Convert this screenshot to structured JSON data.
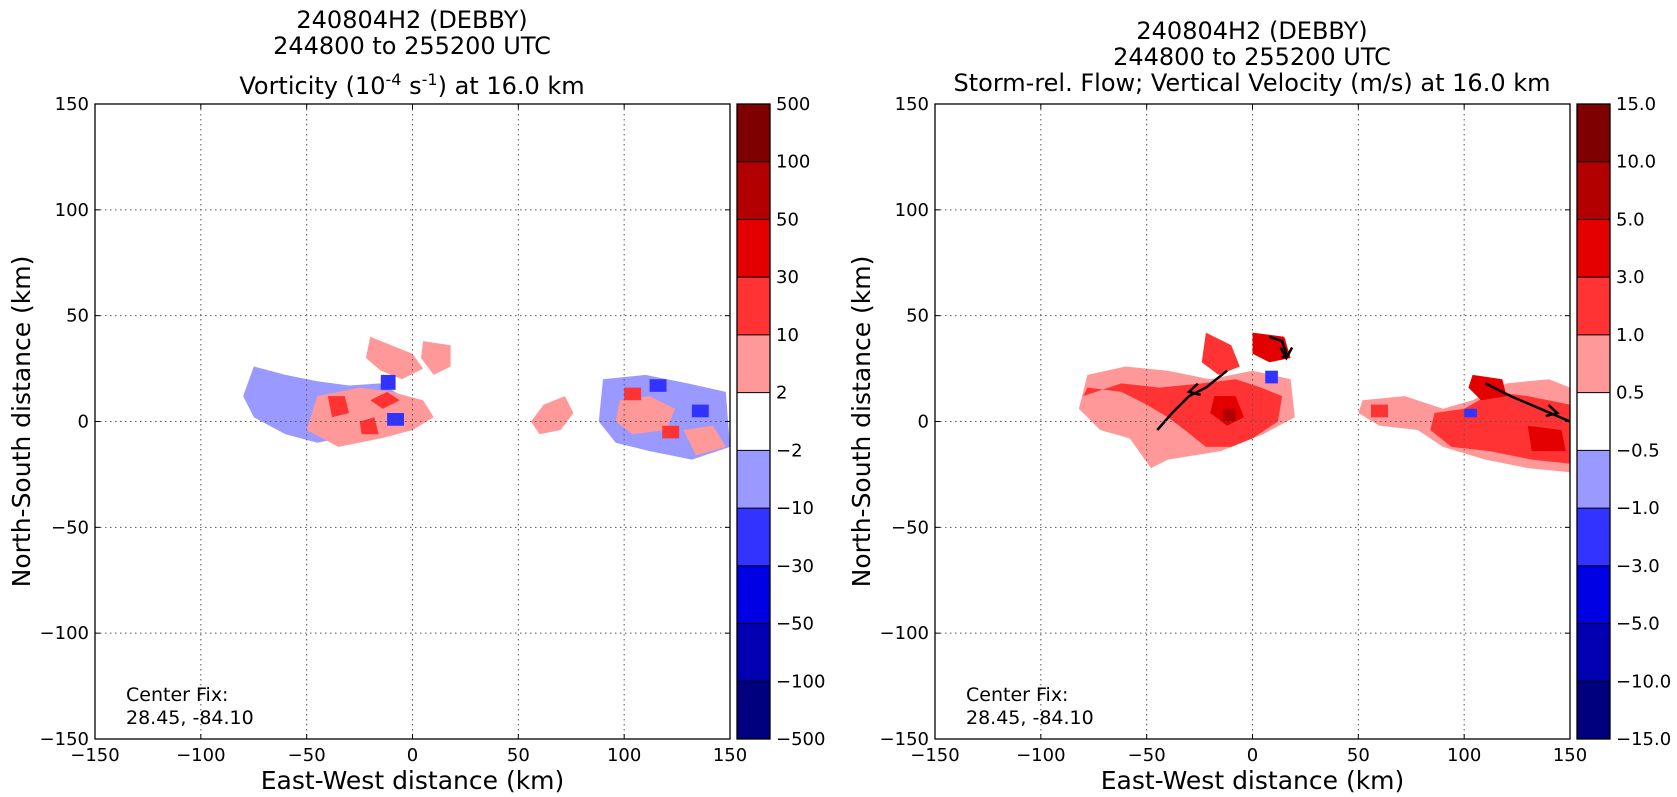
{
  "chart_data": [
    {
      "type": "heatmap",
      "title_lines": [
        "240804H2 (DEBBY)",
        "244800 to 255200 UTC"
      ],
      "title_field": {
        "pre": "Vorticity (10",
        "exp1": "-4",
        "mid": " s",
        "exp2": "-1",
        "post": ") at 16.0 km"
      },
      "xlabel": "East-West distance (km)",
      "ylabel": "North-South distance (km)",
      "xlim": [
        -150,
        150
      ],
      "ylim": [
        -150,
        150
      ],
      "xticks": [
        -150,
        -100,
        -50,
        0,
        50,
        100,
        150
      ],
      "yticks": [
        -150,
        -100,
        -50,
        0,
        50,
        100,
        150
      ],
      "xtick_labels": [
        "−150",
        "−100",
        "−50",
        "0",
        "50",
        "100",
        "150"
      ],
      "ytick_labels": [
        "−150",
        "−100",
        "−50",
        "0",
        "50",
        "100",
        "150"
      ],
      "grid": true,
      "annotation": [
        "Center Fix:",
        "28.45, -84.10"
      ],
      "colorbar": {
        "labels": [
          "500",
          "100",
          "50",
          "30",
          "10",
          "2",
          "−2",
          "−10",
          "−30",
          "−50",
          "−100",
          "−500"
        ],
        "colors": [
          "#7f0000",
          "#b20000",
          "#e50000",
          "#ff3333",
          "#ff9999",
          "#ffffff",
          "#9999ff",
          "#3333ff",
          "#0000e5",
          "#0000b2",
          "#00007f"
        ]
      },
      "regions": [
        {
          "level": -2,
          "points": [
            [
              -75,
              26
            ],
            [
              -60,
              22
            ],
            [
              -45,
              19
            ],
            [
              -30,
              17
            ],
            [
              -15,
              18
            ],
            [
              -5,
              12
            ],
            [
              -10,
              0
            ],
            [
              -25,
              -6
            ],
            [
              -45,
              -10
            ],
            [
              -60,
              -6
            ],
            [
              -75,
              2
            ],
            [
              -80,
              12
            ]
          ]
        },
        {
          "level": 2,
          "points": [
            [
              -45,
              12
            ],
            [
              -25,
              16
            ],
            [
              -10,
              14
            ],
            [
              5,
              10
            ],
            [
              10,
              2
            ],
            [
              0,
              -4
            ],
            [
              -15,
              -8
            ],
            [
              -35,
              -12
            ],
            [
              -50,
              -4
            ]
          ]
        },
        {
          "level": 2,
          "points": [
            [
              -20,
              40
            ],
            [
              -10,
              36
            ],
            [
              0,
              32
            ],
            [
              5,
              25
            ],
            [
              -5,
              20
            ],
            [
              -15,
              24
            ],
            [
              -22,
              30
            ]
          ]
        },
        {
          "level": 2,
          "points": [
            [
              5,
              38
            ],
            [
              18,
              36
            ],
            [
              18,
              26
            ],
            [
              10,
              22
            ],
            [
              4,
              30
            ]
          ]
        },
        {
          "level": 10,
          "points": [
            [
              -40,
              12
            ],
            [
              -32,
              12
            ],
            [
              -30,
              4
            ],
            [
              -38,
              2
            ]
          ]
        },
        {
          "level": 10,
          "points": [
            [
              -20,
              10
            ],
            [
              -12,
              14
            ],
            [
              -6,
              10
            ],
            [
              -14,
              6
            ]
          ]
        },
        {
          "level": 10,
          "points": [
            [
              -25,
              0
            ],
            [
              -18,
              2
            ],
            [
              -16,
              -6
            ],
            [
              -24,
              -6
            ]
          ]
        },
        {
          "level": -10,
          "points": [
            [
              -15,
              22
            ],
            [
              -8,
              22
            ],
            [
              -8,
              15
            ],
            [
              -15,
              15
            ]
          ]
        },
        {
          "level": -10,
          "points": [
            [
              -12,
              4
            ],
            [
              -4,
              4
            ],
            [
              -4,
              -2
            ],
            [
              -12,
              -2
            ]
          ]
        },
        {
          "level": 2,
          "points": [
            [
              62,
              8
            ],
            [
              72,
              12
            ],
            [
              76,
              4
            ],
            [
              70,
              -4
            ],
            [
              60,
              -6
            ],
            [
              56,
              0
            ]
          ]
        },
        {
          "level": -2,
          "points": [
            [
              90,
              20
            ],
            [
              110,
              22
            ],
            [
              130,
              18
            ],
            [
              148,
              14
            ],
            [
              150,
              -12
            ],
            [
              132,
              -18
            ],
            [
              112,
              -14
            ],
            [
              96,
              -10
            ],
            [
              88,
              0
            ]
          ]
        },
        {
          "level": 2,
          "points": [
            [
              98,
              10
            ],
            [
              112,
              12
            ],
            [
              124,
              6
            ],
            [
              120,
              -4
            ],
            [
              104,
              -6
            ],
            [
              96,
              0
            ]
          ]
        },
        {
          "level": 2,
          "points": [
            [
              128,
              -4
            ],
            [
              142,
              -2
            ],
            [
              148,
              -12
            ],
            [
              134,
              -16
            ]
          ]
        },
        {
          "level": -10,
          "points": [
            [
              112,
              20
            ],
            [
              120,
              20
            ],
            [
              120,
              14
            ],
            [
              112,
              14
            ]
          ]
        },
        {
          "level": -10,
          "points": [
            [
              132,
              8
            ],
            [
              140,
              8
            ],
            [
              140,
              2
            ],
            [
              132,
              2
            ]
          ]
        },
        {
          "level": 10,
          "points": [
            [
              100,
              16
            ],
            [
              108,
              16
            ],
            [
              108,
              10
            ],
            [
              100,
              10
            ]
          ]
        },
        {
          "level": 10,
          "points": [
            [
              118,
              -2
            ],
            [
              126,
              -2
            ],
            [
              126,
              -8
            ],
            [
              118,
              -8
            ]
          ]
        }
      ]
    },
    {
      "type": "heatmap",
      "title_lines": [
        "240804H2 (DEBBY)",
        "244800 to 255200 UTC",
        "Storm-rel. Flow; Vertical Velocity (m/s) at 16.0 km"
      ],
      "xlabel": "East-West distance (km)",
      "ylabel": "North-South distance (km)",
      "xlim": [
        -150,
        150
      ],
      "ylim": [
        -150,
        150
      ],
      "xticks": [
        -150,
        -100,
        -50,
        0,
        50,
        100,
        150
      ],
      "yticks": [
        -150,
        -100,
        -50,
        0,
        50,
        100,
        150
      ],
      "xtick_labels": [
        "−150",
        "−100",
        "−50",
        "0",
        "50",
        "100",
        "150"
      ],
      "ytick_labels": [
        "−150",
        "−100",
        "−50",
        "0",
        "50",
        "100",
        "150"
      ],
      "grid": true,
      "annotation": [
        "Center Fix:",
        "28.45, -84.10"
      ],
      "colorbar": {
        "labels": [
          "15.0",
          "10.0",
          "5.0",
          "3.0",
          "1.0",
          "0.5",
          "−0.5",
          "−1.0",
          "−3.0",
          "−5.0",
          "−10.0",
          "−15.0"
        ],
        "colors": [
          "#7f0000",
          "#b20000",
          "#e50000",
          "#ff3333",
          "#ff9999",
          "#ffffff",
          "#9999ff",
          "#3333ff",
          "#0000e5",
          "#0000b2",
          "#00007f"
        ]
      },
      "regions": [
        {
          "level": 0.5,
          "points": [
            [
              -78,
              22
            ],
            [
              -60,
              26
            ],
            [
              -40,
              24
            ],
            [
              -20,
              20
            ],
            [
              0,
              24
            ],
            [
              18,
              20
            ],
            [
              20,
              2
            ],
            [
              5,
              -6
            ],
            [
              -15,
              -14
            ],
            [
              -40,
              -18
            ],
            [
              -48,
              -22
            ],
            [
              -58,
              -8
            ],
            [
              -72,
              -4
            ],
            [
              -82,
              6
            ]
          ]
        },
        {
          "level": 1.0,
          "points": [
            [
              -78,
              16
            ],
            [
              -62,
              14
            ],
            [
              -50,
              8
            ],
            [
              -40,
              2
            ],
            [
              -32,
              -4
            ],
            [
              -22,
              -12
            ],
            [
              -10,
              -12
            ],
            [
              0,
              -8
            ],
            [
              12,
              0
            ],
            [
              14,
              12
            ],
            [
              4,
              16
            ],
            [
              -8,
              20
            ],
            [
              -24,
              18
            ],
            [
              -44,
              16
            ],
            [
              -62,
              18
            ],
            [
              -80,
              12
            ]
          ]
        },
        {
          "level": 1.0,
          "points": [
            [
              -22,
              42
            ],
            [
              -10,
              36
            ],
            [
              -6,
              26
            ],
            [
              -16,
              22
            ],
            [
              -24,
              28
            ]
          ]
        },
        {
          "level": 3.0,
          "points": [
            [
              0,
              42
            ],
            [
              15,
              40
            ],
            [
              18,
              30
            ],
            [
              8,
              28
            ],
            [
              0,
              32
            ]
          ]
        },
        {
          "level": 3.0,
          "points": [
            [
              -18,
              12
            ],
            [
              -8,
              12
            ],
            [
              -4,
              2
            ],
            [
              -12,
              -2
            ],
            [
              -20,
              4
            ]
          ]
        },
        {
          "level": 5.0,
          "points": [
            [
              -14,
              6
            ],
            [
              -8,
              6
            ],
            [
              -8,
              0
            ],
            [
              -14,
              0
            ]
          ]
        },
        {
          "level": 0.5,
          "points": [
            [
              52,
              10
            ],
            [
              72,
              12
            ],
            [
              90,
              6
            ],
            [
              104,
              10
            ],
            [
              120,
              18
            ],
            [
              140,
              20
            ],
            [
              150,
              16
            ],
            [
              150,
              -24
            ],
            [
              130,
              -22
            ],
            [
              110,
              -18
            ],
            [
              90,
              -12
            ],
            [
              78,
              -4
            ],
            [
              60,
              -2
            ],
            [
              50,
              4
            ]
          ]
        },
        {
          "level": 1.0,
          "points": [
            [
              86,
              4
            ],
            [
              100,
              6
            ],
            [
              114,
              14
            ],
            [
              130,
              12
            ],
            [
              150,
              8
            ],
            [
              150,
              -20
            ],
            [
              132,
              -18
            ],
            [
              112,
              -14
            ],
            [
              94,
              -12
            ],
            [
              84,
              -4
            ]
          ]
        },
        {
          "level": 1.0,
          "points": [
            [
              56,
              8
            ],
            [
              64,
              8
            ],
            [
              64,
              2
            ],
            [
              56,
              2
            ]
          ]
        },
        {
          "level": 3.0,
          "points": [
            [
              104,
              22
            ],
            [
              118,
              20
            ],
            [
              120,
              12
            ],
            [
              108,
              10
            ],
            [
              102,
              16
            ]
          ]
        },
        {
          "level": 3.0,
          "points": [
            [
              130,
              -2
            ],
            [
              146,
              -4
            ],
            [
              148,
              -14
            ],
            [
              132,
              -14
            ]
          ]
        },
        {
          "level": -1.0,
          "points": [
            [
              100,
              6
            ],
            [
              106,
              6
            ],
            [
              106,
              2
            ],
            [
              100,
              2
            ]
          ]
        },
        {
          "level": -1.0,
          "points": [
            [
              6,
              24
            ],
            [
              12,
              24
            ],
            [
              12,
              18
            ],
            [
              6,
              18
            ]
          ]
        }
      ],
      "streamlines": [
        {
          "points": [
            [
              -45,
              -4
            ],
            [
              -38,
              4
            ],
            [
              -30,
              12
            ],
            [
              -22,
              16
            ],
            [
              -12,
              24
            ]
          ],
          "arrow_at": [
            [
              -22,
              16
            ],
            [
              -30,
              14
            ]
          ]
        },
        {
          "points": [
            [
              8,
              40
            ],
            [
              14,
              38
            ],
            [
              16,
              32
            ],
            [
              14,
              30
            ]
          ],
          "arrow_at": [
            [
              16,
              36
            ],
            [
              16,
              30
            ]
          ]
        },
        {
          "points": [
            [
              110,
              18
            ],
            [
              122,
              12
            ],
            [
              136,
              6
            ],
            [
              150,
              0
            ]
          ],
          "arrow_at": [
            [
              136,
              6
            ],
            [
              144,
              4
            ]
          ]
        }
      ]
    }
  ]
}
